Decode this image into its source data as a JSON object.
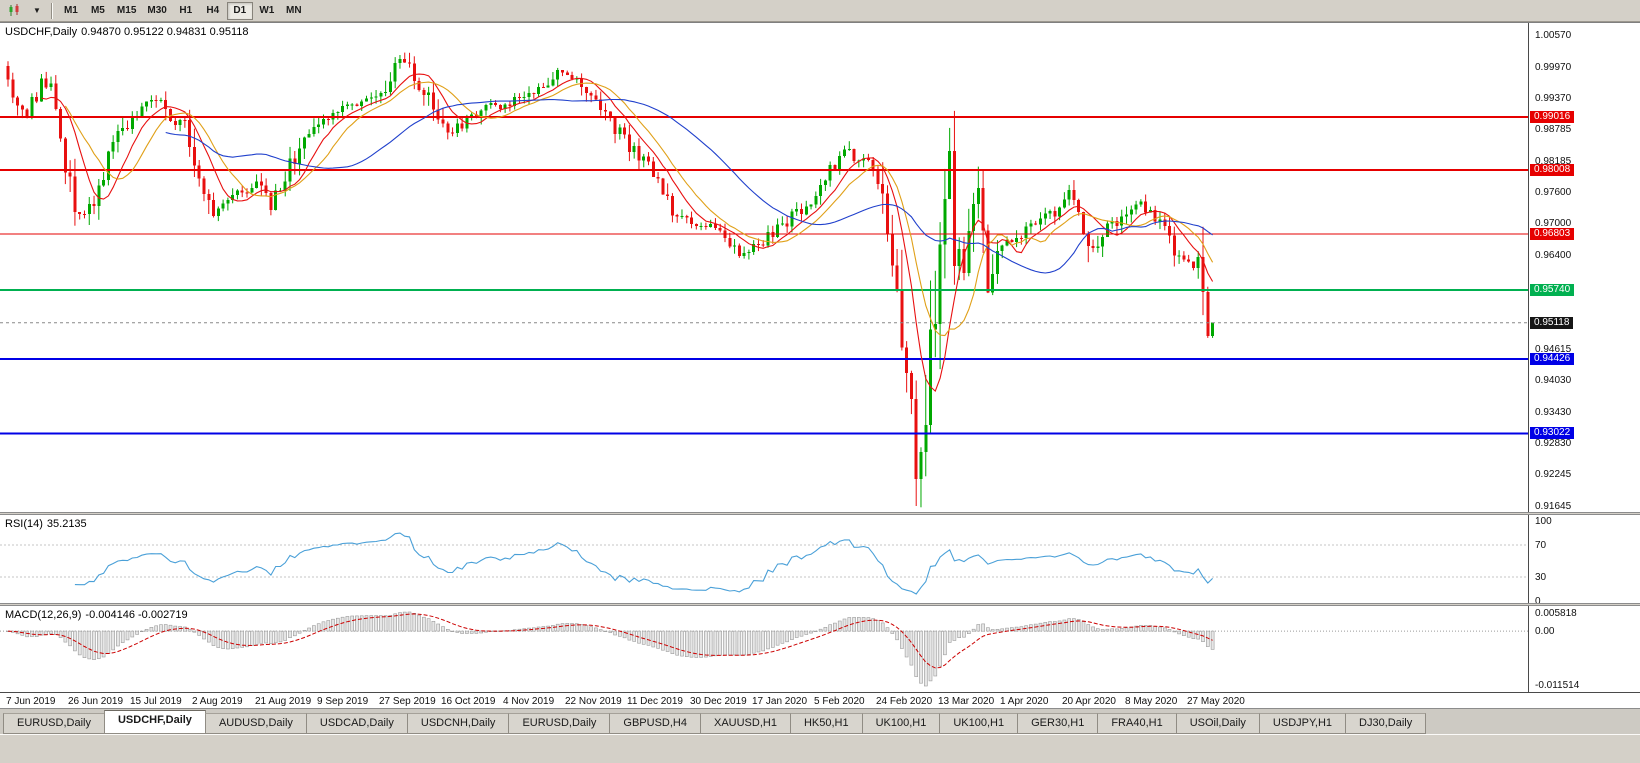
{
  "toolbar": {
    "timeframes": [
      "M1",
      "M5",
      "M15",
      "M30",
      "H1",
      "H4",
      "D1",
      "W1",
      "MN"
    ],
    "active_timeframe": "D1"
  },
  "chart": {
    "symbol_period": "USDCHF,Daily",
    "ohlc": "0.94870 0.95122 0.94831 0.95118"
  },
  "price_axis": {
    "ticks": [
      "1.00570",
      "0.99970",
      "0.99370",
      "0.98785",
      "0.98185",
      "0.97600",
      "0.97000",
      "0.96400",
      "0.94615",
      "0.94030",
      "0.93430",
      "0.92830",
      "0.92245",
      "0.91645"
    ]
  },
  "date_axis": {
    "bars_per_label": 13,
    "labels": [
      "7 Jun 2019",
      "26 Jun 2019",
      "15 Jul 2019",
      "2 Aug 2019",
      "21 Aug 2019",
      "9 Sep 2019",
      "27 Sep 2019",
      "16 Oct 2019",
      "4 Nov 2019",
      "22 Nov 2019",
      "11 Dec 2019",
      "30 Dec 2019",
      "17 Jan 2020",
      "5 Feb 2020",
      "24 Feb 2020",
      "13 Mar 2020",
      "1 Apr 2020",
      "20 Apr 2020",
      "8 May 2020",
      "27 May 2020"
    ]
  },
  "rsi": {
    "label": "RSI(14)",
    "value": "35.2135",
    "ticks": [
      "100",
      "70",
      "30",
      "0"
    ],
    "levels": [
      70,
      30
    ],
    "color": "#4aa0d8"
  },
  "macd": {
    "label": "MACD(12,26,9)",
    "values": "-0.004146 -0.002719",
    "axis_max": "0.005818",
    "axis_zero": "0.00",
    "axis_min": "-0.011514"
  },
  "tabs": {
    "active_index": 1,
    "items": [
      "EURUSD,Daily",
      "USDCHF,Daily",
      "AUDUSD,Daily",
      "USDCAD,Daily",
      "USDCNH,Daily",
      "EURUSD,Daily",
      "GBPUSD,H4",
      "XAUUSD,H1",
      "HK50,H1",
      "UK100,H1",
      "UK100,H1",
      "GER30,H1",
      "FRA40,H1",
      "USOil,Daily",
      "USDJPY,H1",
      "DJ30,Daily"
    ]
  },
  "colors": {
    "up": "#00a800",
    "down": "#e81010",
    "background": "#ffffff",
    "chrome": "#d4d0c8",
    "current_line": "#888888"
  },
  "chart_data": {
    "type": "candlestick",
    "symbol": "USDCHF",
    "timeframe": "Daily",
    "bars": 253,
    "price_range": {
      "top": 1.0057,
      "bottom": 0.91645
    },
    "last_bar": {
      "open": 0.9487,
      "high": 0.95122,
      "low": 0.94831,
      "close": 0.95118
    },
    "crash_low": {
      "index": 190,
      "price": 0.91645
    },
    "current_price": 0.95118,
    "current_price_label": "0.95118",
    "levels": [
      {
        "price": 0.99016,
        "label": "0.99016",
        "color": "#e60000",
        "width": 2
      },
      {
        "price": 0.98008,
        "label": "0.98008",
        "color": "#e60000",
        "width": 2
      },
      {
        "price": 0.96803,
        "label": "0.96803",
        "color": "#e60000",
        "width": 1
      },
      {
        "price": 0.9574,
        "label": "0.95740",
        "color": "#00b050",
        "width": 2
      },
      {
        "price": 0.94426,
        "label": "0.94426",
        "color": "#0000e6",
        "width": 2
      },
      {
        "price": 0.93022,
        "label": "0.93022",
        "color": "#0000e6",
        "width": 2
      }
    ],
    "moving_averages": [
      {
        "period": 8,
        "color": "#e81010"
      },
      {
        "period": 13,
        "color": "#e0a018"
      },
      {
        "period": 34,
        "color": "#2040cc"
      }
    ],
    "indicators": {
      "rsi": {
        "period": 14,
        "current": 35.2135
      },
      "macd": {
        "fast": 12,
        "slow": 26,
        "signal_period": 9,
        "current_main": -0.004146,
        "current_signal": -0.002719
      }
    },
    "path_anchors": [
      [
        0,
        0.9988
      ],
      [
        2,
        0.993
      ],
      [
        4,
        0.9895
      ],
      [
        7,
        0.9975
      ],
      [
        9,
        0.994
      ],
      [
        12,
        0.98
      ],
      [
        15,
        0.971
      ],
      [
        17,
        0.9725
      ],
      [
        20,
        0.98
      ],
      [
        24,
        0.988
      ],
      [
        28,
        0.9925
      ],
      [
        31,
        0.9935
      ],
      [
        34,
        0.989
      ],
      [
        37,
        0.9905
      ],
      [
        40,
        0.979
      ],
      [
        43,
        0.9725
      ],
      [
        46,
        0.9745
      ],
      [
        49,
        0.976
      ],
      [
        52,
        0.9785
      ],
      [
        55,
        0.9725
      ],
      [
        58,
        0.979
      ],
      [
        62,
        0.986
      ],
      [
        65,
        0.9885
      ],
      [
        70,
        0.9925
      ],
      [
        74,
        0.993
      ],
      [
        78,
        0.9945
      ],
      [
        82,
        1.001
      ],
      [
        84,
        0.999
      ],
      [
        88,
        0.9935
      ],
      [
        92,
        0.987
      ],
      [
        96,
        0.9895
      ],
      [
        100,
        0.992
      ],
      [
        104,
        0.9925
      ],
      [
        108,
        0.994
      ],
      [
        112,
        0.9965
      ],
      [
        116,
        0.999
      ],
      [
        119,
        0.9975
      ],
      [
        123,
        0.993
      ],
      [
        127,
        0.988
      ],
      [
        131,
        0.9835
      ],
      [
        135,
        0.9795
      ],
      [
        138,
        0.974
      ],
      [
        141,
        0.9705
      ],
      [
        144,
        0.9695
      ],
      [
        147,
        0.97
      ],
      [
        150,
        0.9665
      ],
      [
        153,
        0.964
      ],
      [
        156,
        0.9655
      ],
      [
        160,
        0.968
      ],
      [
        164,
        0.9715
      ],
      [
        168,
        0.974
      ],
      [
        172,
        0.98
      ],
      [
        175,
        0.984
      ],
      [
        177,
        0.9815
      ],
      [
        179,
        0.983
      ],
      [
        182,
        0.978
      ],
      [
        184,
        0.968
      ],
      [
        186,
        0.96
      ],
      [
        188,
        0.942
      ],
      [
        190,
        0.919
      ],
      [
        191,
        0.924
      ],
      [
        192,
        0.933
      ],
      [
        193,
        0.945
      ],
      [
        195,
        0.97
      ],
      [
        197,
        0.986
      ],
      [
        198,
        0.968
      ],
      [
        200,
        0.962
      ],
      [
        202,
        0.975
      ],
      [
        203,
        0.979
      ],
      [
        204,
        0.962
      ],
      [
        205,
        0.9575
      ],
      [
        207,
        0.965
      ],
      [
        210,
        0.9665
      ],
      [
        213,
        0.969
      ],
      [
        216,
        0.971
      ],
      [
        219,
        0.972
      ],
      [
        222,
        0.976
      ],
      [
        225,
        0.97
      ],
      [
        227,
        0.9645
      ],
      [
        230,
        0.969
      ],
      [
        233,
        0.971
      ],
      [
        236,
        0.974
      ],
      [
        238,
        0.9725
      ],
      [
        240,
        0.9715
      ],
      [
        242,
        0.968
      ],
      [
        244,
        0.965
      ],
      [
        246,
        0.9625
      ],
      [
        248,
        0.961
      ],
      [
        249,
        0.964
      ],
      [
        250,
        0.957
      ],
      [
        251,
        0.9487
      ],
      [
        252,
        0.9512
      ]
    ]
  }
}
